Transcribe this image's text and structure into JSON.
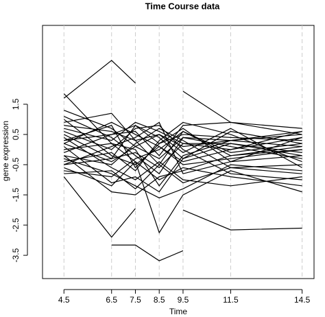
{
  "chart_data": {
    "type": "line",
    "title": "Time Course data",
    "x_label": "Time",
    "y_label": "gene expression",
    "color": "#000000",
    "grid": true,
    "x": [
      4.5,
      6.5,
      7.5,
      8.5,
      9.5,
      11.5,
      14.5
    ],
    "xlim": [
      3.6,
      15.0
    ],
    "xticks": [
      4.5,
      6.5,
      7.5,
      8.5,
      9.5,
      11.5,
      14.5
    ],
    "ylim": [
      -4.27,
      4.11
    ],
    "yticks": [
      -3.5,
      -2.5,
      -1.5,
      -0.5,
      0.5,
      1.5
    ],
    "series": [
      {
        "values": [
          1.7,
          2.95,
          2.2,
          null,
          null,
          null,
          null
        ]
      },
      {
        "values": [
          null,
          null,
          null,
          null,
          1.93,
          0.9,
          0.5
        ]
      },
      {
        "values": [
          null,
          -3.16,
          -3.16,
          -3.68,
          -3.35,
          null,
          null
        ]
      },
      {
        "values": [
          -0.9,
          -2.9,
          -1.95,
          null,
          -2.0,
          -2.66,
          -2.6
        ]
      },
      {
        "values": [
          1.85,
          0.2,
          -0.4,
          -2.75,
          -1.5,
          -0.7,
          -1.4
        ]
      },
      {
        "values": [
          1.3,
          0.7,
          0.1,
          0.5,
          0.1,
          0.3,
          0.6
        ]
      },
      {
        "values": [
          0.9,
          1.2,
          0.3,
          -0.5,
          0.6,
          -0.2,
          0.1
        ]
      },
      {
        "values": [
          0.5,
          -0.3,
          0.8,
          0.4,
          -0.3,
          0.2,
          -0.1
        ]
      },
      {
        "values": [
          0.3,
          0.8,
          -0.6,
          0.2,
          0.5,
          0.4,
          0.3
        ]
      },
      {
        "values": [
          0.1,
          -1.1,
          -0.9,
          -1.4,
          -0.3,
          0.6,
          0.2
        ]
      },
      {
        "values": [
          -0.1,
          0.5,
          0.6,
          -0.2,
          0.8,
          0.9,
          0.7
        ]
      },
      {
        "values": [
          -0.3,
          -0.8,
          -1.2,
          -1.6,
          -1.3,
          -0.5,
          -0.7
        ]
      },
      {
        "values": [
          -0.5,
          0.1,
          0.4,
          0.9,
          -0.8,
          -0.4,
          -0.2
        ]
      },
      {
        "values": [
          -0.6,
          -1.2,
          -0.4,
          -1.0,
          -0.6,
          -0.9,
          -1.2
        ]
      },
      {
        "values": [
          0.7,
          0.3,
          0.9,
          0.6,
          0.2,
          0.0,
          0.4
        ]
      },
      {
        "values": [
          1.1,
          0.4,
          -0.2,
          -0.8,
          0.4,
          0.1,
          -0.3
        ]
      },
      {
        "values": [
          -0.2,
          -0.5,
          0.2,
          0.7,
          0.3,
          -0.6,
          -0.5
        ]
      },
      {
        "values": [
          0.2,
          0.9,
          0.5,
          0.1,
          -0.5,
          -0.3,
          0.0
        ]
      },
      {
        "values": [
          -0.4,
          -0.1,
          -0.7,
          0.3,
          0.9,
          0.5,
          -0.4
        ]
      },
      {
        "values": [
          0.4,
          -0.6,
          -1.0,
          -0.4,
          -1.0,
          -1.2,
          -0.9
        ]
      },
      {
        "values": [
          0.0,
          0.2,
          0.0,
          -1.2,
          -0.2,
          0.3,
          0.5
        ]
      },
      {
        "values": [
          -0.7,
          -0.9,
          -0.3,
          0.0,
          0.6,
          -0.1,
          0.2
        ]
      },
      {
        "values": [
          0.6,
          0.0,
          0.7,
          0.8,
          0.0,
          -0.8,
          -1.0
        ]
      },
      {
        "values": [
          -0.2,
          -1.4,
          -1.5,
          -0.9,
          -0.7,
          -0.2,
          0.0
        ]
      },
      {
        "values": [
          0.8,
          0.6,
          0.3,
          0.5,
          -0.1,
          0.7,
          -0.6
        ]
      },
      {
        "values": [
          -0.5,
          -0.3,
          -0.1,
          -0.6,
          0.2,
          0.2,
          -0.2
        ]
      },
      {
        "values": [
          0.3,
          0.5,
          0.8,
          0.2,
          0.7,
          -0.4,
          0.4
        ]
      },
      {
        "values": [
          1.0,
          -0.2,
          -0.5,
          0.1,
          -0.4,
          0.0,
          0.6
        ]
      },
      {
        "values": [
          -0.8,
          -0.7,
          -1.3,
          -0.5,
          -1.1,
          -0.6,
          -0.8
        ]
      },
      {
        "values": [
          0.2,
          -0.4,
          0.1,
          -0.3,
          0.4,
          0.3,
          0.1
        ]
      }
    ]
  }
}
